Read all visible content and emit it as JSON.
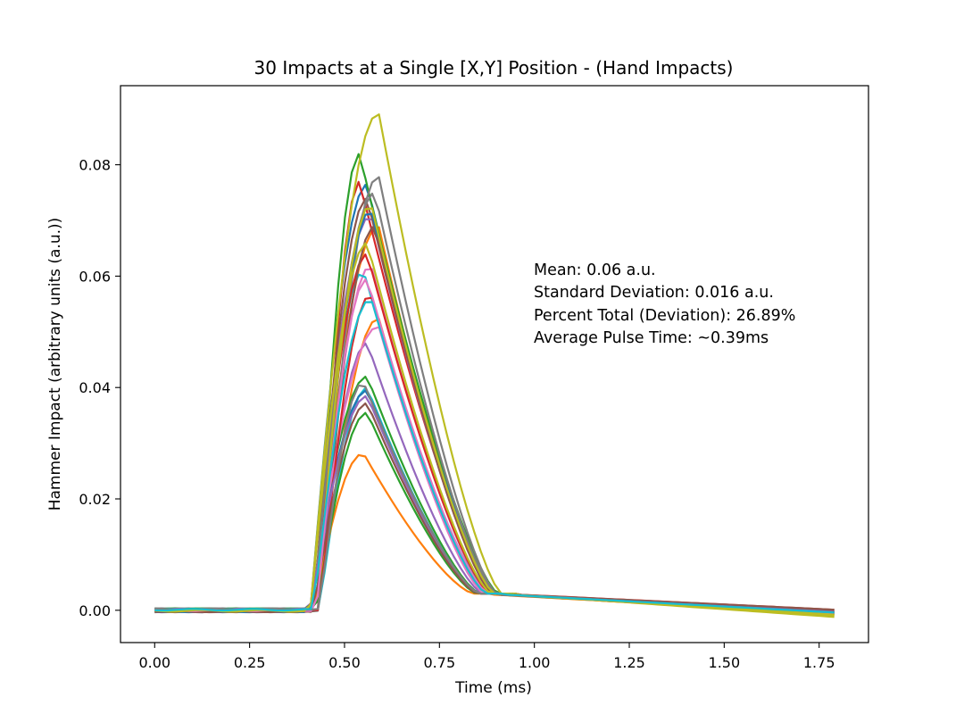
{
  "chart_data": {
    "type": "line",
    "title": "30 Impacts at a Single [X,Y] Position - (Hand Impacts)",
    "xlabel": "Time (ms)",
    "ylabel": "Hammer Impact (arbitrary units (a.u.))",
    "xlim": [
      -0.09,
      1.88
    ],
    "ylim": [
      -0.0058,
      0.0942
    ],
    "xticks": [
      0.0,
      0.25,
      0.5,
      0.75,
      1.0,
      1.25,
      1.5,
      1.75
    ],
    "xtick_labels": [
      "0.00",
      "0.25",
      "0.50",
      "0.75",
      "1.00",
      "1.25",
      "1.50",
      "1.75"
    ],
    "yticks": [
      0.0,
      0.02,
      0.04,
      0.06,
      0.08
    ],
    "ytick_labels": [
      "0.00",
      "0.02",
      "0.04",
      "0.06",
      "0.08"
    ],
    "grid": false,
    "legend": "none",
    "annotations": [
      "Mean: 0.06 a.u.",
      "Standard Deviation: 0.016 a.u.",
      "Percent Total (Deviation): 26.89%",
      "Average Pulse Time: ~0.39ms"
    ],
    "series_count": 30,
    "x_range": [
      0.0,
      1.79
    ],
    "series": [
      {
        "color": "#1f77b4",
        "peak": 0.0765,
        "peak_time": 0.56,
        "end": -0.0005
      },
      {
        "color": "#ff7f0e",
        "peak": 0.069,
        "peak_time": 0.59,
        "end": -0.0008
      },
      {
        "color": "#2ca02c",
        "peak": 0.082,
        "peak_time": 0.54,
        "end": -0.0006
      },
      {
        "color": "#d62728",
        "peak": 0.077,
        "peak_time": 0.54,
        "end": 0.0001
      },
      {
        "color": "#9467bd",
        "peak": 0.071,
        "peak_time": 0.57,
        "end": -0.0004
      },
      {
        "color": "#8c564b",
        "peak": 0.074,
        "peak_time": 0.56,
        "end": -0.0002
      },
      {
        "color": "#e377c2",
        "peak": 0.062,
        "peak_time": 0.57,
        "end": -0.0003
      },
      {
        "color": "#7f7f7f",
        "peak": 0.078,
        "peak_time": 0.59,
        "end": -0.0004
      },
      {
        "color": "#bcbd22",
        "peak": 0.0893,
        "peak_time": 0.59,
        "end": -0.0012
      },
      {
        "color": "#17becf",
        "peak": 0.061,
        "peak_time": 0.55,
        "end": -0.0005
      },
      {
        "color": "#1f77b4",
        "peak": 0.072,
        "peak_time": 0.57,
        "end": -0.0006
      },
      {
        "color": "#ff7f0e",
        "peak": 0.0525,
        "peak_time": 0.59,
        "end": -0.0004
      },
      {
        "color": "#2ca02c",
        "peak": 0.042,
        "peak_time": 0.56,
        "end": -0.0007
      },
      {
        "color": "#d62728",
        "peak": 0.064,
        "peak_time": 0.56,
        "end": -0.0003
      },
      {
        "color": "#9467bd",
        "peak": 0.048,
        "peak_time": 0.56,
        "end": -0.0005
      },
      {
        "color": "#8c564b",
        "peak": 0.069,
        "peak_time": 0.58,
        "end": 0.0001
      },
      {
        "color": "#e377c2",
        "peak": 0.051,
        "peak_time": 0.59,
        "end": -0.0004
      },
      {
        "color": "#7f7f7f",
        "peak": 0.075,
        "peak_time": 0.58,
        "end": -0.0006
      },
      {
        "color": "#bcbd22",
        "peak": 0.073,
        "peak_time": 0.57,
        "end": -0.0009
      },
      {
        "color": "#17becf",
        "peak": 0.04,
        "peak_time": 0.56,
        "end": -0.0005
      },
      {
        "color": "#1f77b4",
        "peak": 0.0395,
        "peak_time": 0.56,
        "end": -0.0003
      },
      {
        "color": "#ff7f0e",
        "peak": 0.0282,
        "peak_time": 0.55,
        "end": -0.0006
      },
      {
        "color": "#2ca02c",
        "peak": 0.0355,
        "peak_time": 0.56,
        "end": -0.0004
      },
      {
        "color": "#d62728",
        "peak": 0.0568,
        "peak_time": 0.57,
        "end": -0.0005
      },
      {
        "color": "#9467bd",
        "peak": 0.0385,
        "peak_time": 0.56,
        "end": -0.0003
      },
      {
        "color": "#8c564b",
        "peak": 0.0372,
        "peak_time": 0.56,
        "end": -0.0004
      },
      {
        "color": "#e377c2",
        "peak": 0.0595,
        "peak_time": 0.56,
        "end": -0.0006
      },
      {
        "color": "#7f7f7f",
        "peak": 0.041,
        "peak_time": 0.55,
        "end": -0.0004
      },
      {
        "color": "#bcbd22",
        "peak": 0.066,
        "peak_time": 0.56,
        "end": -0.0008
      },
      {
        "color": "#17becf",
        "peak": 0.056,
        "peak_time": 0.57,
        "end": -0.0004
      }
    ]
  }
}
